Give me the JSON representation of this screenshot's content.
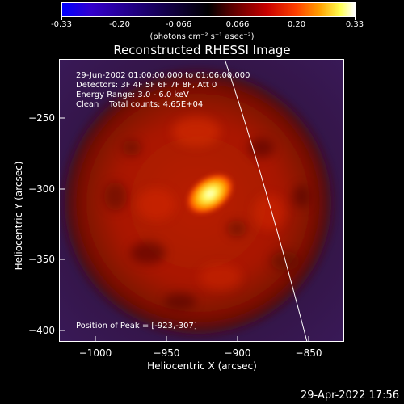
{
  "colorbar": {
    "ticks": [
      "-0.33",
      "-0.20",
      "-0.066",
      "0.066",
      "0.20",
      "0.33"
    ],
    "units": "(photons cm⁻² s⁻¹ asec⁻²)"
  },
  "title": "Reconstructed RHESSI Image",
  "info": {
    "time_range": "29-Jun-2002 01:00:00.000 to 01:06:00.000",
    "detectors": "Detectors: 3F 4F 5F 6F 7F 8F, Att 0",
    "energy": "Energy Range: 3.0 - 6.0 keV",
    "clean": "Clean    Total counts: 4.65E+04",
    "peak": "Position of Peak = [-923,-307]"
  },
  "axes": {
    "xlabel": "Heliocentric X (arcsec)",
    "ylabel": "Heliocentric Y (arcsec)",
    "xticks": [
      "−1000",
      "−950",
      "−900",
      "−850"
    ],
    "yticks": [
      "−250",
      "−300",
      "−350",
      "−400"
    ]
  },
  "footer": {
    "date": "29-Apr-2022 17:56"
  },
  "colors": {
    "background": "#000000",
    "frame": "#ffffff"
  }
}
